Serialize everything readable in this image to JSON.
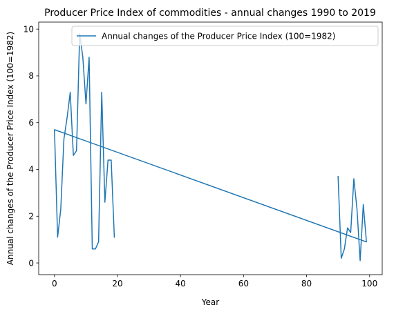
{
  "chart_data": {
    "type": "line",
    "title": "Producer Price Index of commodities - annual changes 1990 to 2019",
    "xlabel": "Year",
    "ylabel": "Annual changes of the Producer Price Index (100=1982)",
    "xlim": [
      -5,
      104
    ],
    "ylim": [
      -0.5,
      10.3
    ],
    "xticks": [
      0,
      20,
      40,
      60,
      80,
      100
    ],
    "yticks": [
      0,
      2,
      4,
      6,
      8,
      10
    ],
    "grid": false,
    "legend_position": "top-right",
    "series": [
      {
        "name": "Annual changes of the Producer Price Index (100=1982)",
        "color": "#1f77b4",
        "x": [
          90,
          91,
          92,
          93,
          94,
          95,
          96,
          97,
          98,
          99,
          0,
          1,
          2,
          3,
          4,
          5,
          6,
          7,
          8,
          9,
          10,
          11,
          12,
          13,
          14,
          15,
          16,
          17,
          18,
          19
        ],
        "y": [
          3.7,
          0.2,
          0.6,
          1.5,
          1.3,
          3.6,
          2.3,
          0.1,
          2.5,
          0.9,
          5.7,
          1.1,
          2.3,
          5.3,
          6.2,
          7.3,
          4.6,
          4.8,
          9.8,
          8.8,
          6.8,
          8.8,
          0.6,
          0.6,
          0.9,
          7.3,
          2.6,
          4.4,
          4.4,
          1.1
        ]
      }
    ]
  }
}
